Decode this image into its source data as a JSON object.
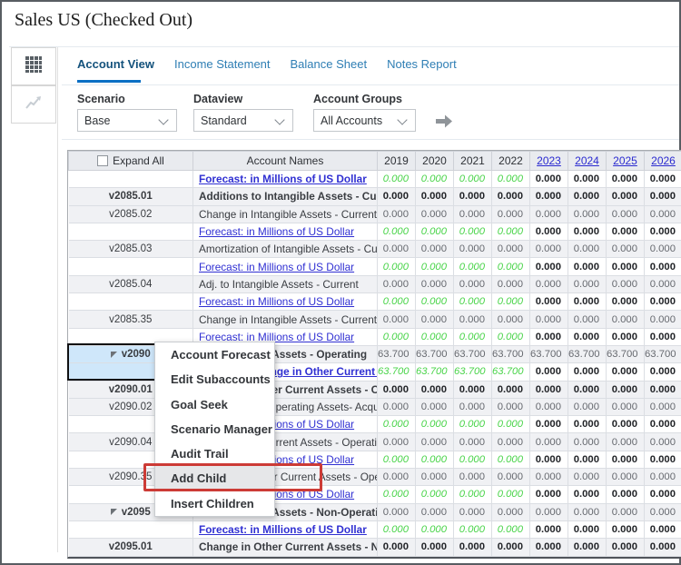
{
  "title": "Sales US (Checked Out)",
  "sidebar": {
    "buttons": [
      {
        "icon": "grid",
        "active": true
      },
      {
        "icon": "chart",
        "active": false
      }
    ]
  },
  "tabs": [
    {
      "label": "Account View",
      "active": true
    },
    {
      "label": "Income Statement",
      "active": false
    },
    {
      "label": "Balance Sheet",
      "active": false
    },
    {
      "label": "Notes Report",
      "active": false
    }
  ],
  "filters": [
    {
      "label": "Scenario",
      "value": "Base"
    },
    {
      "label": "Dataview",
      "value": "Standard"
    },
    {
      "label": "Account Groups",
      "value": "All Accounts"
    }
  ],
  "grid": {
    "header": {
      "expand_all": "Expand All",
      "expand_all_checked": false,
      "account_names": "Account Names",
      "years": [
        {
          "label": "2019",
          "link": false
        },
        {
          "label": "2020",
          "link": false
        },
        {
          "label": "2021",
          "link": false
        },
        {
          "label": "2022",
          "link": false
        },
        {
          "label": "2023",
          "link": true
        },
        {
          "label": "2024",
          "link": true
        },
        {
          "label": "2025",
          "link": true
        },
        {
          "label": "2026",
          "link": true
        }
      ]
    },
    "rows": [
      {
        "code": "",
        "kind": "forecast",
        "bold": true,
        "name": "Forecast: in Millions of US Dollar",
        "values": [
          "0.000",
          "0.000",
          "0.000",
          "0.000",
          "0.000",
          "0.000",
          "0.000",
          "0.000"
        ]
      },
      {
        "code": "v2085.01",
        "kind": "account",
        "bold": true,
        "values_bold": true,
        "name": "Additions to Intangible Assets - Current",
        "values": [
          "0.000",
          "0.000",
          "0.000",
          "0.000",
          "0.000",
          "0.000",
          "0.000",
          "0.000"
        ]
      },
      {
        "code": "v2085.02",
        "kind": "account",
        "name": "Change in Intangible Assets - Current due to",
        "values": [
          "0.000",
          "0.000",
          "0.000",
          "0.000",
          "0.000",
          "0.000",
          "0.000",
          "0.000"
        ]
      },
      {
        "code": "",
        "kind": "forecast",
        "name": "Forecast: in Millions of US Dollar",
        "values": [
          "0.000",
          "0.000",
          "0.000",
          "0.000",
          "0.000",
          "0.000",
          "0.000",
          "0.000"
        ]
      },
      {
        "code": "v2085.03",
        "kind": "account",
        "name": "Amortization of Intangible Assets - Current",
        "values": [
          "0.000",
          "0.000",
          "0.000",
          "0.000",
          "0.000",
          "0.000",
          "0.000",
          "0.000"
        ]
      },
      {
        "code": "",
        "kind": "forecast",
        "name": "Forecast: in Millions of US Dollar",
        "values": [
          "0.000",
          "0.000",
          "0.000",
          "0.000",
          "0.000",
          "0.000",
          "0.000",
          "0.000"
        ]
      },
      {
        "code": "v2085.04",
        "kind": "account",
        "name": "Adj. to Intangible Assets - Current",
        "values": [
          "0.000",
          "0.000",
          "0.000",
          "0.000",
          "0.000",
          "0.000",
          "0.000",
          "0.000"
        ]
      },
      {
        "code": "",
        "kind": "forecast",
        "name": "Forecast: in Millions of US Dollar",
        "values": [
          "0.000",
          "0.000",
          "0.000",
          "0.000",
          "0.000",
          "0.000",
          "0.000",
          "0.000"
        ]
      },
      {
        "code": "v2085.35",
        "kind": "account",
        "name": "Change in Intangible Assets - Current due to",
        "values": [
          "0.000",
          "0.000",
          "0.000",
          "0.000",
          "0.000",
          "0.000",
          "0.000",
          "0.000"
        ]
      },
      {
        "code": "",
        "kind": "forecast",
        "name": "Forecast: in Millions of US Dollar",
        "values": [
          "0.000",
          "0.000",
          "0.000",
          "0.000",
          "0.000",
          "0.000",
          "0.000",
          "0.000"
        ]
      },
      {
        "code": "v2090",
        "kind": "account",
        "bold": true,
        "expandable": true,
        "selected": true,
        "name": "Other Current Assets - Operating",
        "values": [
          "63.700",
          "63.700",
          "63.700",
          "63.700",
          "63.700",
          "63.700",
          "63.700",
          "63.700"
        ]
      },
      {
        "code": "",
        "kind": "forecast",
        "bold": true,
        "selected": true,
        "name": "Forecast: Change in Other Current Assets",
        "values": [
          "63.700",
          "63.700",
          "63.700",
          "63.700",
          "0.000",
          "0.000",
          "0.000",
          "0.000"
        ]
      },
      {
        "code": "v2090.01",
        "kind": "account",
        "bold": true,
        "values_bold": true,
        "name": "Change in Other Current Assets - Operating",
        "values": [
          "0.000",
          "0.000",
          "0.000",
          "0.000",
          "0.000",
          "0.000",
          "0.000",
          "0.000"
        ]
      },
      {
        "code": "v2090.02",
        "kind": "account",
        "name": "Other Current Operating Assets- Acquired",
        "values": [
          "0.000",
          "0.000",
          "0.000",
          "0.000",
          "0.000",
          "0.000",
          "0.000",
          "0.000"
        ]
      },
      {
        "code": "",
        "kind": "forecast",
        "name": "Forecast: in Millions of US Dollar",
        "values": [
          "0.000",
          "0.000",
          "0.000",
          "0.000",
          "0.000",
          "0.000",
          "0.000",
          "0.000"
        ]
      },
      {
        "code": "v2090.04",
        "kind": "account",
        "name": "Adj. to Other Current Assets - Operating",
        "values": [
          "0.000",
          "0.000",
          "0.000",
          "0.000",
          "0.000",
          "0.000",
          "0.000",
          "0.000"
        ]
      },
      {
        "code": "",
        "kind": "forecast",
        "name": "Forecast: in Millions of US Dollar",
        "values": [
          "0.000",
          "0.000",
          "0.000",
          "0.000",
          "0.000",
          "0.000",
          "0.000",
          "0.000"
        ]
      },
      {
        "code": "v2090.35",
        "kind": "account",
        "name": "Change in Other Current Assets - Operating",
        "values": [
          "0.000",
          "0.000",
          "0.000",
          "0.000",
          "0.000",
          "0.000",
          "0.000",
          "0.000"
        ]
      },
      {
        "code": "",
        "kind": "forecast",
        "name": "Forecast: in Millions of US Dollar",
        "values": [
          "0.000",
          "0.000",
          "0.000",
          "0.000",
          "0.000",
          "0.000",
          "0.000",
          "0.000"
        ]
      },
      {
        "code": "v2095",
        "kind": "account",
        "bold": true,
        "expandable": true,
        "name": "Other Current Assets - Non-Operating",
        "values": [
          "0.000",
          "0.000",
          "0.000",
          "0.000",
          "0.000",
          "0.000",
          "0.000",
          "0.000"
        ]
      },
      {
        "code": "",
        "kind": "forecast",
        "bold": true,
        "name": "Forecast: in Millions of US Dollar",
        "values": [
          "0.000",
          "0.000",
          "0.000",
          "0.000",
          "0.000",
          "0.000",
          "0.000",
          "0.000"
        ]
      },
      {
        "code": "v2095.01",
        "kind": "account",
        "bold": true,
        "values_bold": true,
        "name": "Change in Other Current Assets - Non-Operating",
        "values": [
          "0.000",
          "0.000",
          "0.000",
          "0.000",
          "0.000",
          "0.000",
          "0.000",
          "0.000"
        ]
      }
    ]
  },
  "context_menu": {
    "items": [
      "Account Forecast",
      "Edit Subaccounts",
      "Goal Seek",
      "Scenario Manager",
      "Audit Trail",
      "Add Child",
      "Insert Children"
    ],
    "highlighted_item": "Add Child"
  },
  "colors": {
    "accent_blue": "#0b6fc4",
    "link_blue": "#2f2fd2",
    "value_green": "#49d449",
    "selection_blue": "#cfe7fa",
    "annotation_red": "#cc3b36"
  }
}
